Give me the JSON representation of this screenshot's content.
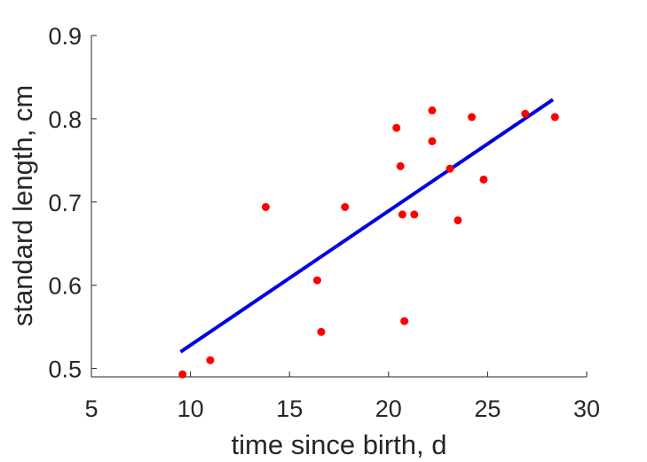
{
  "chart_data": {
    "type": "scatter",
    "title": "",
    "xlabel": "time since birth, d",
    "ylabel": "standard length, cm",
    "xlim": [
      5,
      30
    ],
    "ylim": [
      0.49,
      0.9
    ],
    "xticks": [
      5,
      10,
      15,
      20,
      25,
      30
    ],
    "xtick_labels": [
      "5",
      "10",
      "15",
      "20",
      "25",
      "30"
    ],
    "yticks": [
      0.5,
      0.6,
      0.7,
      0.8,
      0.9
    ],
    "ytick_labels": [
      "0.5",
      "0.6",
      "0.7",
      "0.8",
      "0.9"
    ],
    "grid": false,
    "legend": "none",
    "series": [
      {
        "kind": "points",
        "color": "#ff0000",
        "points": [
          {
            "x": 9.6,
            "y": 0.493
          },
          {
            "x": 11.0,
            "y": 0.51
          },
          {
            "x": 13.8,
            "y": 0.694
          },
          {
            "x": 16.4,
            "y": 0.606
          },
          {
            "x": 16.6,
            "y": 0.544
          },
          {
            "x": 17.8,
            "y": 0.694
          },
          {
            "x": 20.4,
            "y": 0.789
          },
          {
            "x": 20.6,
            "y": 0.743
          },
          {
            "x": 20.7,
            "y": 0.685
          },
          {
            "x": 20.8,
            "y": 0.557
          },
          {
            "x": 21.3,
            "y": 0.685
          },
          {
            "x": 22.2,
            "y": 0.81
          },
          {
            "x": 22.2,
            "y": 0.773
          },
          {
            "x": 23.1,
            "y": 0.74
          },
          {
            "x": 23.5,
            "y": 0.678
          },
          {
            "x": 24.2,
            "y": 0.802
          },
          {
            "x": 24.8,
            "y": 0.727
          },
          {
            "x": 26.9,
            "y": 0.806
          },
          {
            "x": 28.4,
            "y": 0.802
          }
        ]
      },
      {
        "kind": "fit-line",
        "color": "#0000e6",
        "points": [
          {
            "x": 9.5,
            "y": 0.52
          },
          {
            "x": 28.3,
            "y": 0.823
          }
        ]
      }
    ]
  }
}
